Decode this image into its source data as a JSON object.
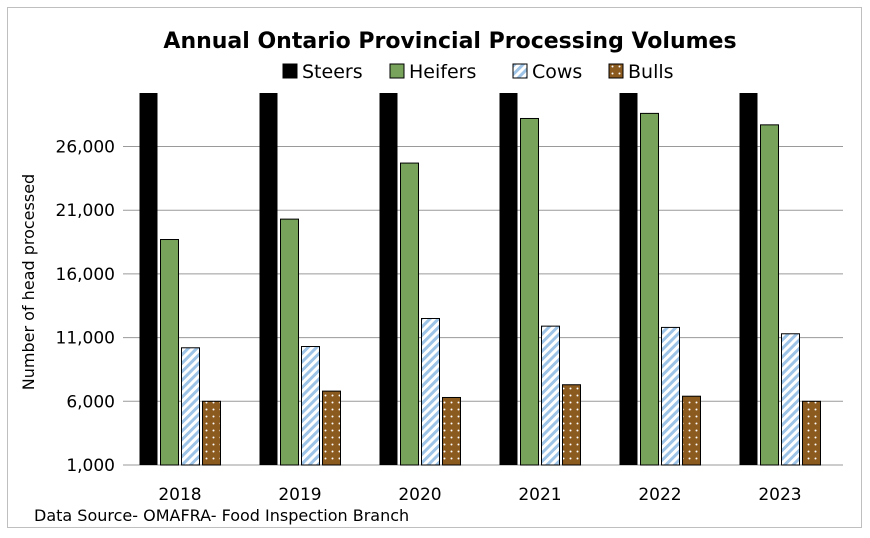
{
  "chart_data": {
    "type": "bar",
    "title": "Annual Ontario Provincial  Processing Volumes",
    "ylabel": "Number of head processed",
    "xlabel": "",
    "categories": [
      "2018",
      "2019",
      "2020",
      "2021",
      "2022",
      "2023"
    ],
    "ylim": [
      1000,
      30200
    ],
    "yticks": [
      "1,000",
      "6,000",
      "11,000",
      "16,000",
      "21,000",
      "26,000"
    ],
    "ytick_values": [
      1000,
      6000,
      11000,
      16000,
      21000,
      26000
    ],
    "grid": true,
    "legend_position": "top",
    "series": [
      {
        "name": "Steers",
        "values": [
          35000,
          35000,
          35000,
          35000,
          35000,
          35000
        ],
        "color": "#000000",
        "pattern": "solid"
      },
      {
        "name": "Heifers",
        "values": [
          18700,
          20300,
          24700,
          28200,
          28600,
          27700
        ],
        "color": "#77a35b",
        "pattern": "solid"
      },
      {
        "name": "Cows",
        "values": [
          10200,
          10300,
          12500,
          11900,
          11800,
          11300
        ],
        "color": "#9dc3e6",
        "pattern": "diagonal-stripes"
      },
      {
        "name": "Bulls",
        "values": [
          6000,
          6800,
          6300,
          7300,
          6400,
          6000
        ],
        "color": "#8b5a1e",
        "pattern": "dots"
      }
    ],
    "source_note": "Data Source- OMAFRA- Food Inspection Branch"
  }
}
